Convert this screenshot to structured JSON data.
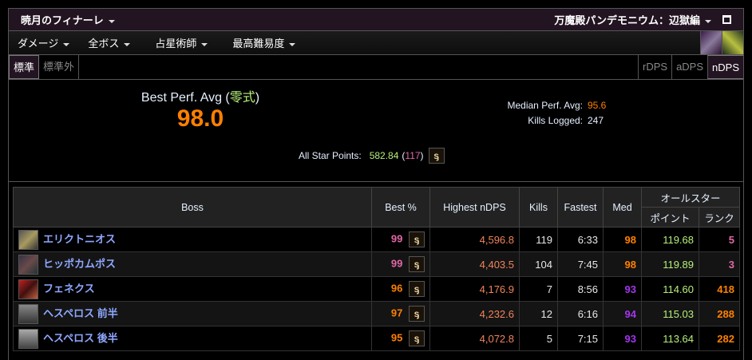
{
  "header": {
    "title": "暁月のフィナーレ",
    "zone": "万魔殿パンデモニウム：辺獄編"
  },
  "menu": [
    "ダメージ",
    "全ボス",
    "占星術師",
    "最高難易度"
  ],
  "tabs": {
    "left": [
      {
        "label": "標準",
        "active": true
      },
      {
        "label": "標準外",
        "active": false
      }
    ],
    "right": [
      {
        "label": "rDPS",
        "active": false
      },
      {
        "label": "aDPS",
        "active": false
      },
      {
        "label": "nDPS",
        "active": true
      }
    ]
  },
  "summary": {
    "best_label": "Best Perf. Avg (",
    "difficulty": "零式",
    "close_paren": ")",
    "best_value": "98.0",
    "median_label": "Median Perf. Avg:",
    "median_value": "95.6",
    "kills_label": "Kills Logged:",
    "kills_value": "247",
    "asp_label": "All Star Points:",
    "asp_value": "582.84",
    "asp_rank": "117"
  },
  "table": {
    "headers": {
      "boss": "Boss",
      "best": "Best %",
      "highest": "Highest nDPS",
      "kills": "Kills",
      "fastest": "Fastest",
      "med": "Med",
      "allstar": "オールスター",
      "points": "ポイント",
      "rank": "ランク"
    },
    "rows": [
      {
        "boss": "エリクトニオス",
        "best": "99",
        "highest": "4,596.8",
        "kills": "119",
        "fastest": "6:33",
        "med": "98",
        "points": "119.68",
        "rank": "5"
      },
      {
        "boss": "ヒッポカムポス",
        "best": "99",
        "highest": "4,403.5",
        "kills": "104",
        "fastest": "7:45",
        "med": "98",
        "points": "119.89",
        "rank": "3"
      },
      {
        "boss": "フェネクス",
        "best": "96",
        "highest": "4,176.9",
        "kills": "7",
        "fastest": "8:56",
        "med": "93",
        "points": "114.60",
        "rank": "418"
      },
      {
        "boss": "ヘスペロス 前半",
        "best": "97",
        "highest": "4,232.6",
        "kills": "12",
        "fastest": "6:16",
        "med": "94",
        "points": "115.03",
        "rank": "288"
      },
      {
        "boss": "ヘスペロス 後半",
        "best": "95",
        "highest": "4,072.8",
        "kills": "5",
        "fastest": "7:15",
        "med": "93",
        "points": "113.64",
        "rank": "282"
      }
    ]
  },
  "colors": {
    "legendary": "#e268a8",
    "epic": "#a335ee",
    "orange": "#ff8000",
    "points": "#b6f07a"
  }
}
